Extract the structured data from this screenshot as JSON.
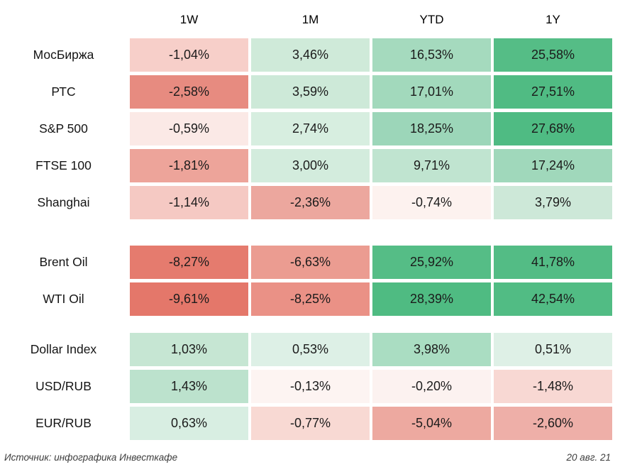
{
  "page": {
    "background": "#ffffff"
  },
  "header": {
    "columns": [
      "1W",
      "1M",
      "YTD",
      "1Y"
    ]
  },
  "footer": {
    "source": "Источник: инфографика Инвесткафе",
    "date": "20 авг. 21"
  },
  "chart_data": {
    "type": "heatmap",
    "columns": [
      "1W",
      "1M",
      "YTD",
      "1Y"
    ],
    "value_format": "percent with comma decimal separator",
    "color_scale": {
      "negative_max": "#e4776a",
      "neutral": "#ffffff",
      "positive_max": "#4fbb83"
    },
    "sections": [
      {
        "name": "equity-indices",
        "rows": [
          {
            "label": "МосБиржа",
            "values": [
              -1.04,
              3.46,
              16.53,
              25.58
            ],
            "display": [
              "-1,04%",
              "3,46%",
              "16,53%",
              "25,58%"
            ],
            "cell_colors": [
              "#f7cfc9",
              "#cfead9",
              "#a5dabe",
              "#55bd86"
            ]
          },
          {
            "label": "РТС",
            "values": [
              -2.58,
              3.59,
              17.01,
              27.51
            ],
            "display": [
              "-2,58%",
              "3,59%",
              "17,01%",
              "27,51%"
            ],
            "cell_colors": [
              "#e78b80",
              "#cde9d8",
              "#a2d9bc",
              "#50bb83"
            ]
          },
          {
            "label": "S&P 500",
            "values": [
              -0.59,
              2.74,
              18.25,
              27.68
            ],
            "display": [
              "-0,59%",
              "2,74%",
              "18,25%",
              "27,68%"
            ],
            "cell_colors": [
              "#fbe9e6",
              "#d7eee0",
              "#9cd6b9",
              "#4fbb83"
            ]
          },
          {
            "label": "FTSE 100",
            "values": [
              -1.81,
              3.0,
              9.71,
              17.24
            ],
            "display": [
              "-1,81%",
              "3,00%",
              "9,71%",
              "17,24%"
            ],
            "cell_colors": [
              "#eda49a",
              "#d3ecdd",
              "#c0e4d0",
              "#a0d8bb"
            ]
          },
          {
            "label": "Shanghai",
            "values": [
              -1.14,
              -2.36,
              -0.74,
              3.79
            ],
            "display": [
              "-1,14%",
              "-2,36%",
              "-0,74%",
              "3,79%"
            ],
            "cell_colors": [
              "#f5c9c3",
              "#eca79e",
              "#fdf2ef",
              "#cde8d8"
            ]
          }
        ]
      },
      {
        "name": "oil",
        "rows": [
          {
            "label": "Brent Oil",
            "values": [
              -8.27,
              -6.63,
              25.92,
              41.78
            ],
            "display": [
              "-8,27%",
              "-6,63%",
              "25,92%",
              "41,78%"
            ],
            "cell_colors": [
              "#e57b6e",
              "#eb9c91",
              "#55bd86",
              "#53bc85"
            ]
          },
          {
            "label": "WTI Oil",
            "values": [
              -9.61,
              -8.25,
              28.39,
              42.54
            ],
            "display": [
              "-9,61%",
              "-8,25%",
              "28,39%",
              "42,54%"
            ],
            "cell_colors": [
              "#e4776a",
              "#ea9186",
              "#4fbb82",
              "#51bc84"
            ]
          }
        ]
      },
      {
        "name": "currencies",
        "rows": [
          {
            "label": "Dollar Index",
            "values": [
              1.03,
              0.53,
              3.98,
              0.51
            ],
            "display": [
              "1,03%",
              "0,53%",
              "3,98%",
              "0,51%"
            ],
            "cell_colors": [
              "#c6e6d3",
              "#ddf0e6",
              "#aaddc2",
              "#def0e6"
            ]
          },
          {
            "label": "USD/RUB",
            "values": [
              1.43,
              -0.13,
              -0.2,
              -1.48
            ],
            "display": [
              "1,43%",
              "-0,13%",
              "-0,20%",
              "-1,48%"
            ],
            "cell_colors": [
              "#bce2cd",
              "#fdf4f2",
              "#fcf2f0",
              "#f8d8d3"
            ]
          },
          {
            "label": "EUR/RUB",
            "values": [
              0.63,
              -0.77,
              -5.04,
              -2.6
            ],
            "display": [
              "0,63%",
              "-0,77%",
              "-5,04%",
              "-2,60%"
            ],
            "cell_colors": [
              "#d8eee2",
              "#f8d9d3",
              "#eda9a0",
              "#eeafa8"
            ]
          }
        ]
      }
    ]
  }
}
